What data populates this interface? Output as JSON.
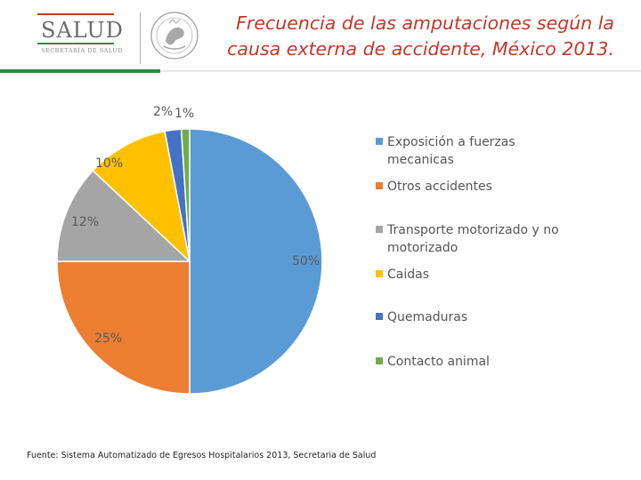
{
  "header": {
    "logo_text": "SALUD",
    "logo_subtitle": "SECRETARÍA DE SALUD",
    "title_line1": "Frecuencia de las amputaciones según la",
    "title_line2": "causa externa de accidente, México 2013.",
    "accent_red": "#c0392b",
    "brand_green": "#2e8b3e"
  },
  "chart_data": {
    "type": "pie",
    "title": "Frecuencia de las amputaciones según la causa externa de accidente, México 2013.",
    "categories": [
      "Exposición a fuerzas mecanicas",
      "Otros accidentes",
      "Transporte motorizado y no motorizado",
      "Caidas",
      "Quemaduras",
      "Contacto animal"
    ],
    "values": [
      50,
      25,
      12,
      10,
      2,
      1
    ],
    "value_labels": [
      "50%",
      "25%",
      "12%",
      "10%",
      "2%",
      "1%"
    ],
    "colors": [
      "#5b9bd5",
      "#ed7d31",
      "#a5a5a5",
      "#ffc000",
      "#4472c4",
      "#70ad47"
    ],
    "legend_position": "right"
  },
  "footer": {
    "source": "Fuente: Sistema Automatizado de Egresos Hospitalarios 2013, Secretaria de Salud"
  }
}
